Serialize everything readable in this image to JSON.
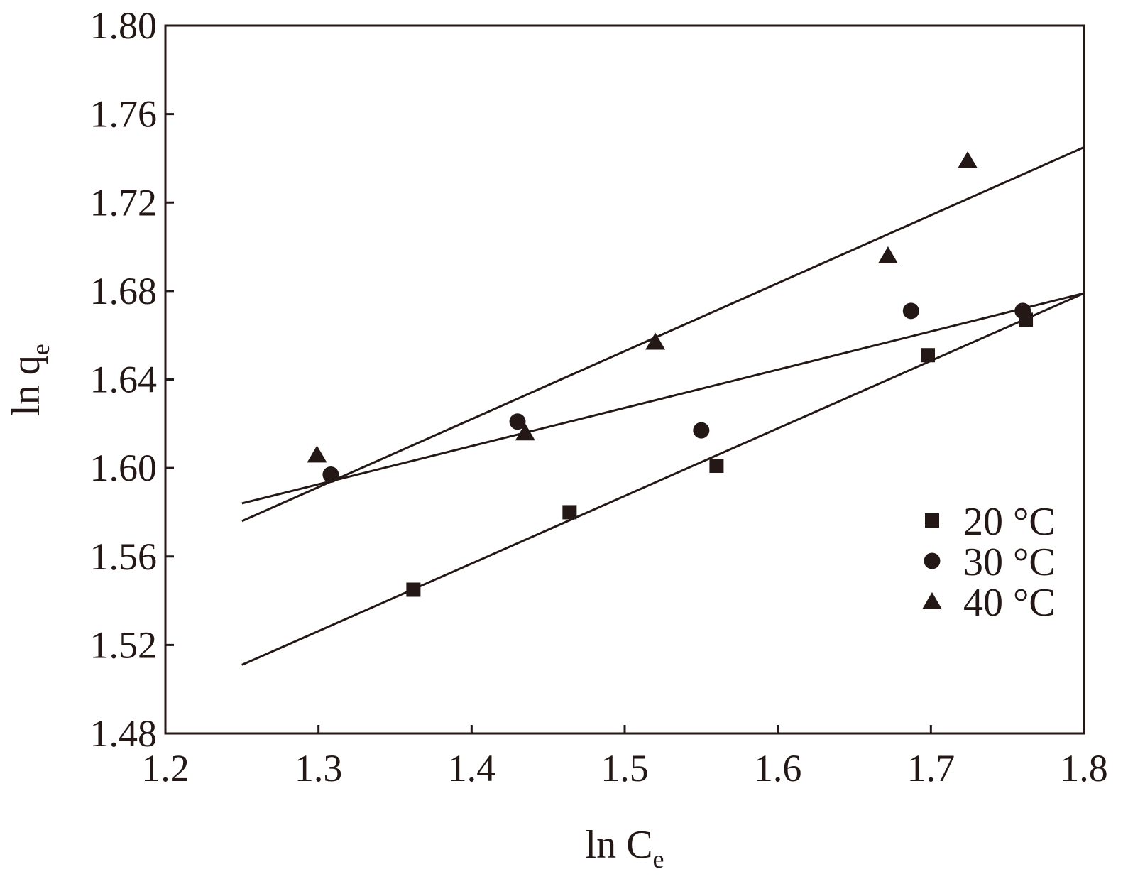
{
  "chart_data": {
    "type": "scatter",
    "title": "",
    "xlabel": "ln C",
    "xlabel_sub": "e",
    "ylabel": "ln q",
    "ylabel_sub": "e",
    "xlim": [
      1.2,
      1.8
    ],
    "ylim": [
      1.48,
      1.8
    ],
    "xticks": [
      1.2,
      1.3,
      1.4,
      1.5,
      1.6,
      1.7,
      1.8
    ],
    "xtick_labels": [
      "1.2",
      "1.3",
      "1.4",
      "1.5",
      "1.6",
      "1.7",
      "1.8"
    ],
    "yticks": [
      1.48,
      1.52,
      1.56,
      1.6,
      1.64,
      1.68,
      1.72,
      1.76,
      1.8
    ],
    "ytick_labels": [
      "1.48",
      "1.52",
      "1.56",
      "1.60",
      "1.64",
      "1.68",
      "1.72",
      "1.76",
      "1.80"
    ],
    "grid": false,
    "legend_position": "right",
    "color": "#231815",
    "series": [
      {
        "name": "20 °C",
        "marker": "square",
        "x": [
          1.362,
          1.464,
          1.56,
          1.698,
          1.762
        ],
        "y": [
          1.545,
          1.58,
          1.601,
          1.651,
          1.667
        ],
        "fit": {
          "x": [
            1.25,
            1.8
          ],
          "y": [
            1.511,
            1.679
          ]
        }
      },
      {
        "name": "30 °C",
        "marker": "circle",
        "x": [
          1.308,
          1.43,
          1.55,
          1.687,
          1.76
        ],
        "y": [
          1.597,
          1.621,
          1.617,
          1.671,
          1.671
        ],
        "fit": {
          "x": [
            1.25,
            1.8
          ],
          "y": [
            1.584,
            1.679
          ]
        }
      },
      {
        "name": "40 °C",
        "marker": "triangle",
        "x": [
          1.299,
          1.435,
          1.52,
          1.672,
          1.724
        ],
        "y": [
          1.606,
          1.616,
          1.657,
          1.696,
          1.739
        ],
        "fit": {
          "x": [
            1.25,
            1.8
          ],
          "y": [
            1.576,
            1.745
          ]
        }
      }
    ]
  }
}
